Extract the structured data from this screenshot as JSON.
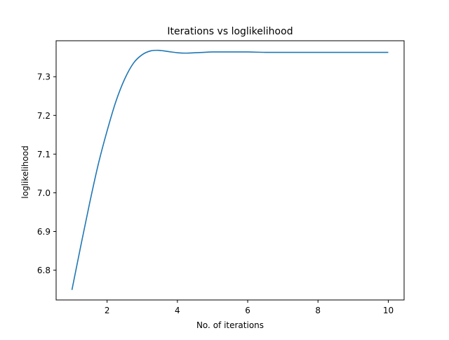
{
  "chart_data": {
    "type": "line",
    "title": "Iterations vs loglikelihood",
    "xlabel": "No. of iterations",
    "ylabel": "loglikelihood",
    "xlim": [
      0.55,
      10.45
    ],
    "ylim": [
      6.723,
      7.393
    ],
    "xticks": [
      2,
      4,
      6,
      8,
      10
    ],
    "yticks": [
      6.8,
      6.9,
      7.0,
      7.1,
      7.2,
      7.3
    ],
    "xtick_labels": [
      "2",
      "4",
      "6",
      "8",
      "10"
    ],
    "ytick_labels": [
      "6.8",
      "6.9",
      "7.0",
      "7.1",
      "7.2",
      "7.3"
    ],
    "grid": false,
    "legend": "none",
    "line_color": "#1f77b4",
    "series": [
      {
        "x": [
          1.0,
          1.25,
          1.5,
          1.75,
          2.0,
          2.25,
          2.5,
          2.75,
          3.0,
          3.25,
          3.5,
          3.75,
          4.0,
          4.25,
          4.5,
          4.75,
          5.0,
          5.5,
          6.0,
          6.5,
          7.0,
          7.5,
          8.0,
          8.5,
          9.0,
          9.5,
          10.0
        ],
        "y": [
          6.749,
          6.862,
          6.972,
          7.074,
          7.16,
          7.236,
          7.294,
          7.335,
          7.357,
          7.367,
          7.368,
          7.365,
          7.362,
          7.361,
          7.362,
          7.363,
          7.364,
          7.364,
          7.364,
          7.363,
          7.363,
          7.363,
          7.363,
          7.363,
          7.363,
          7.363,
          7.363
        ]
      }
    ]
  }
}
